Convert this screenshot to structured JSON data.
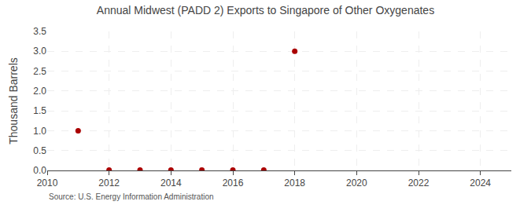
{
  "chart_data": {
    "type": "scatter",
    "title": "Annual Midwest (PADD 2) Exports to Singapore of Other Oxygenates",
    "ylabel": "Thousand Barrels",
    "source": "Source: U.S. Energy Information Administration",
    "x": [
      2011,
      2012,
      2013,
      2014,
      2015,
      2016,
      2017,
      2018
    ],
    "values": [
      1.0,
      0.01,
      0.01,
      0.01,
      0.01,
      0.01,
      0.01,
      3.0
    ],
    "color": "#aa0000",
    "xlim": [
      2010,
      2025
    ],
    "ylim": [
      0.0,
      3.5
    ],
    "xticks": [
      2010,
      2012,
      2014,
      2016,
      2018,
      2020,
      2022,
      2024
    ],
    "yticks": [
      {
        "value": 0,
        "label": "0.0"
      },
      0.5,
      {
        "value": 1,
        "label": "1.0"
      },
      1.5,
      {
        "value": 2,
        "label": "2.0"
      },
      2.5,
      {
        "value": 3,
        "label": "3.0"
      },
      3.5
    ],
    "grid": true
  }
}
